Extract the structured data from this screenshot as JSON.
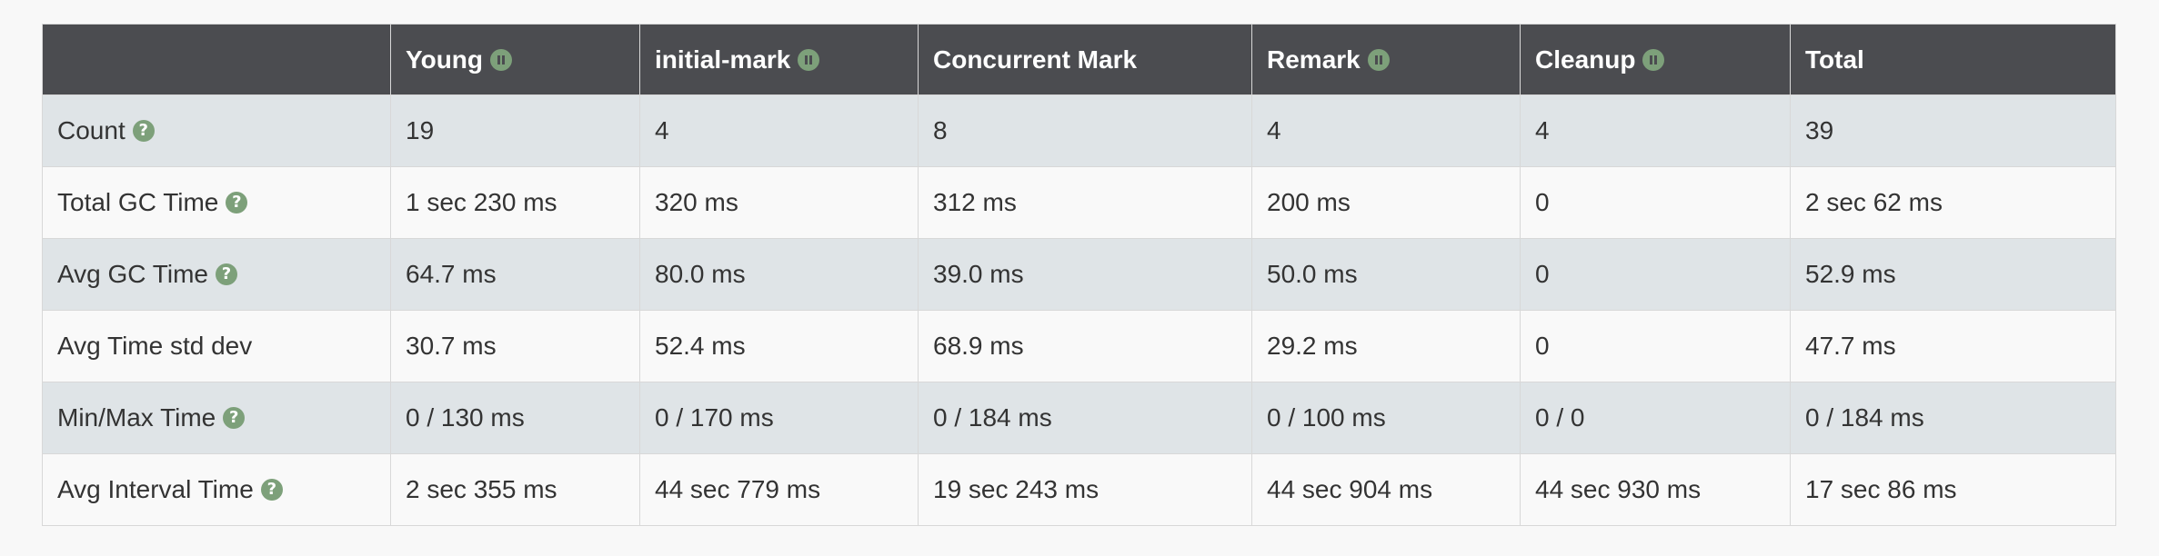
{
  "table": {
    "columns": [
      {
        "label": "",
        "icon": null
      },
      {
        "label": "Young",
        "icon": "pause-icon"
      },
      {
        "label": "initial-mark",
        "icon": "pause-icon"
      },
      {
        "label": "Concurrent Mark",
        "icon": null
      },
      {
        "label": "Remark",
        "icon": "pause-icon"
      },
      {
        "label": "Cleanup",
        "icon": "pause-icon"
      },
      {
        "label": "Total",
        "icon": null
      }
    ],
    "rows": [
      {
        "label": "Count",
        "help_icon": "help-icon",
        "cells": [
          "19",
          "4",
          "8",
          "4",
          "4",
          "39"
        ]
      },
      {
        "label": "Total GC Time",
        "help_icon": "help-icon",
        "cells": [
          "1 sec 230 ms",
          "320 ms",
          "312 ms",
          "200 ms",
          "0",
          "2 sec 62 ms"
        ]
      },
      {
        "label": "Avg GC Time",
        "help_icon": "help-icon",
        "cells": [
          "64.7 ms",
          "80.0 ms",
          "39.0 ms",
          "50.0 ms",
          "0",
          "52.9 ms"
        ]
      },
      {
        "label": "Avg Time std dev",
        "help_icon": null,
        "cells": [
          "30.7 ms",
          "52.4 ms",
          "68.9 ms",
          "29.2 ms",
          "0",
          "47.7 ms"
        ]
      },
      {
        "label": "Min/Max Time",
        "help_icon": "help-icon",
        "cells": [
          "0 / 130 ms",
          "0 / 170 ms",
          "0 / 184 ms",
          "0 / 100 ms",
          "0 / 0",
          "0 / 184 ms"
        ]
      },
      {
        "label": "Avg Interval Time",
        "help_icon": "help-icon",
        "cells": [
          "2 sec 355 ms",
          "44 sec 779 ms",
          "19 sec 243 ms",
          "44 sec 904 ms",
          "44 sec 930 ms",
          "17 sec 86 ms"
        ]
      }
    ]
  },
  "colors": {
    "header_bg": "#4b4c50",
    "icon_green": "#7da07a",
    "row_stripe": "#dfe4e7",
    "row_plain": "#f9f9f9"
  }
}
